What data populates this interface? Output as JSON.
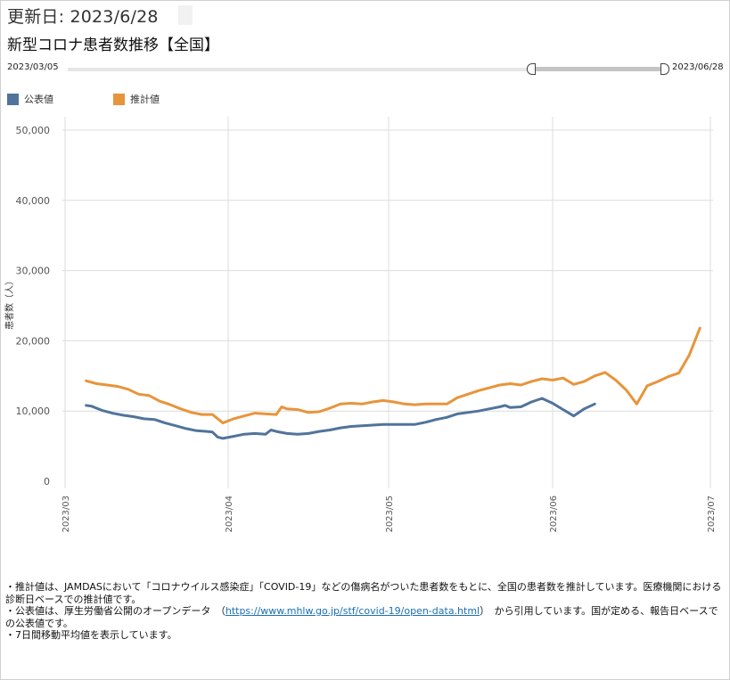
{
  "header": {
    "updated_label": "更新日: 2023/6/28",
    "title": "新型コロナ患者数推移【全国】"
  },
  "range_slider": {
    "start_label": "2023/03/05",
    "end_label": "2023/06/28",
    "selected_start_fraction": 0.777,
    "selected_end_fraction": 1.0
  },
  "colors": {
    "official": "#50749b",
    "estimate": "#e8943b",
    "grid": "#dcdcdc"
  },
  "notes": {
    "line1": "・推計値は、JAMDASにおいて「コロナウイルス感染症」「COVID-19」などの傷病名がついた患者数をもとに、全国の患者数を推計しています。医療機関における診断日ベースでの推計値です。",
    "line2_pre": "・公表値は、厚生労働省公開のオープンデータ　（",
    "line2_link": "https://www.mhlw.go.jp/stf/covid-19/open-data.html",
    "line2_post": "）　から引用しています。国が定める、報告日ベースでの公表値です。",
    "line3": "・7日間移動平均値を表示しています。"
  },
  "chart_data": {
    "type": "line",
    "title": "",
    "xlabel": "",
    "ylabel": "患者数（人）",
    "x_type": "date",
    "xlim": [
      "2023-03-01",
      "2023-07-01"
    ],
    "ylim": [
      0,
      50000
    ],
    "y_ticks": [
      0,
      10000,
      20000,
      30000,
      40000,
      50000
    ],
    "y_tick_labels": [
      "0",
      "10,000",
      "20,000",
      "30,000",
      "40,000",
      "50,000"
    ],
    "x_ticks": [
      "2023-03-01",
      "2023-04-01",
      "2023-05-01",
      "2023-06-01",
      "2023-07-01"
    ],
    "x_tick_labels": [
      "2023/03",
      "2023/04",
      "2023/05",
      "2023/06",
      "2023/07"
    ],
    "grid": true,
    "legend_position": "top-left",
    "series": [
      {
        "name": "公表値",
        "color": "#50749b",
        "points": [
          [
            "2023-03-05",
            10800
          ],
          [
            "2023-03-06",
            10700
          ],
          [
            "2023-03-08",
            10100
          ],
          [
            "2023-03-10",
            9700
          ],
          [
            "2023-03-12",
            9400
          ],
          [
            "2023-03-14",
            9200
          ],
          [
            "2023-03-16",
            8900
          ],
          [
            "2023-03-18",
            8800
          ],
          [
            "2023-03-20",
            8300
          ],
          [
            "2023-03-22",
            7900
          ],
          [
            "2023-03-24",
            7500
          ],
          [
            "2023-03-26",
            7200
          ],
          [
            "2023-03-28",
            7100
          ],
          [
            "2023-03-29",
            7000
          ],
          [
            "2023-03-30",
            6300
          ],
          [
            "2023-03-31",
            6100
          ],
          [
            "2023-04-02",
            6400
          ],
          [
            "2023-04-04",
            6700
          ],
          [
            "2023-04-06",
            6800
          ],
          [
            "2023-04-08",
            6700
          ],
          [
            "2023-04-09",
            7300
          ],
          [
            "2023-04-10",
            7100
          ],
          [
            "2023-04-12",
            6800
          ],
          [
            "2023-04-14",
            6700
          ],
          [
            "2023-04-16",
            6800
          ],
          [
            "2023-04-18",
            7100
          ],
          [
            "2023-04-20",
            7300
          ],
          [
            "2023-04-22",
            7600
          ],
          [
            "2023-04-24",
            7800
          ],
          [
            "2023-04-26",
            7900
          ],
          [
            "2023-04-28",
            8000
          ],
          [
            "2023-04-30",
            8100
          ],
          [
            "2023-05-02",
            8100
          ],
          [
            "2023-05-04",
            8100
          ],
          [
            "2023-05-06",
            8100
          ],
          [
            "2023-05-08",
            8400
          ],
          [
            "2023-05-10",
            8800
          ],
          [
            "2023-05-12",
            9100
          ],
          [
            "2023-05-14",
            9600
          ],
          [
            "2023-05-16",
            9800
          ],
          [
            "2023-05-18",
            10000
          ],
          [
            "2023-05-20",
            10300
          ],
          [
            "2023-05-22",
            10600
          ],
          [
            "2023-05-23",
            10800
          ],
          [
            "2023-05-24",
            10500
          ],
          [
            "2023-05-26",
            10600
          ],
          [
            "2023-05-28",
            11300
          ],
          [
            "2023-05-30",
            11800
          ],
          [
            "2023-06-01",
            11100
          ],
          [
            "2023-06-03",
            10200
          ],
          [
            "2023-06-05",
            9300
          ],
          [
            "2023-06-07",
            10300
          ],
          [
            "2023-06-09",
            11000
          ]
        ]
      },
      {
        "name": "推計値",
        "color": "#e8943b",
        "points": [
          [
            "2023-03-05",
            14300
          ],
          [
            "2023-03-07",
            13900
          ],
          [
            "2023-03-09",
            13700
          ],
          [
            "2023-03-11",
            13500
          ],
          [
            "2023-03-13",
            13100
          ],
          [
            "2023-03-15",
            12400
          ],
          [
            "2023-03-17",
            12200
          ],
          [
            "2023-03-19",
            11400
          ],
          [
            "2023-03-21",
            10900
          ],
          [
            "2023-03-23",
            10300
          ],
          [
            "2023-03-25",
            9800
          ],
          [
            "2023-03-27",
            9500
          ],
          [
            "2023-03-29",
            9500
          ],
          [
            "2023-03-31",
            8300
          ],
          [
            "2023-04-02",
            8900
          ],
          [
            "2023-04-04",
            9300
          ],
          [
            "2023-04-06",
            9700
          ],
          [
            "2023-04-08",
            9600
          ],
          [
            "2023-04-10",
            9500
          ],
          [
            "2023-04-11",
            10600
          ],
          [
            "2023-04-12",
            10300
          ],
          [
            "2023-04-14",
            10200
          ],
          [
            "2023-04-16",
            9800
          ],
          [
            "2023-04-18",
            9900
          ],
          [
            "2023-04-20",
            10400
          ],
          [
            "2023-04-22",
            11000
          ],
          [
            "2023-04-24",
            11100
          ],
          [
            "2023-04-26",
            11000
          ],
          [
            "2023-04-28",
            11300
          ],
          [
            "2023-04-30",
            11500
          ],
          [
            "2023-05-02",
            11300
          ],
          [
            "2023-05-04",
            11000
          ],
          [
            "2023-05-06",
            10900
          ],
          [
            "2023-05-08",
            11000
          ],
          [
            "2023-05-10",
            11000
          ],
          [
            "2023-05-12",
            11000
          ],
          [
            "2023-05-14",
            11900
          ],
          [
            "2023-05-16",
            12400
          ],
          [
            "2023-05-18",
            12900
          ],
          [
            "2023-05-20",
            13300
          ],
          [
            "2023-05-22",
            13700
          ],
          [
            "2023-05-24",
            13900
          ],
          [
            "2023-05-26",
            13700
          ],
          [
            "2023-05-28",
            14200
          ],
          [
            "2023-05-30",
            14600
          ],
          [
            "2023-06-01",
            14400
          ],
          [
            "2023-06-03",
            14700
          ],
          [
            "2023-06-05",
            13800
          ],
          [
            "2023-06-07",
            14200
          ],
          [
            "2023-06-09",
            15000
          ],
          [
            "2023-06-11",
            15500
          ],
          [
            "2023-06-13",
            14400
          ],
          [
            "2023-06-15",
            13000
          ],
          [
            "2023-06-17",
            11000
          ],
          [
            "2023-06-19",
            13600
          ],
          [
            "2023-06-21",
            14200
          ],
          [
            "2023-06-23",
            14900
          ],
          [
            "2023-06-25",
            15400
          ],
          [
            "2023-06-27",
            18000
          ],
          [
            "2023-06-29",
            21800
          ]
        ]
      }
    ]
  }
}
